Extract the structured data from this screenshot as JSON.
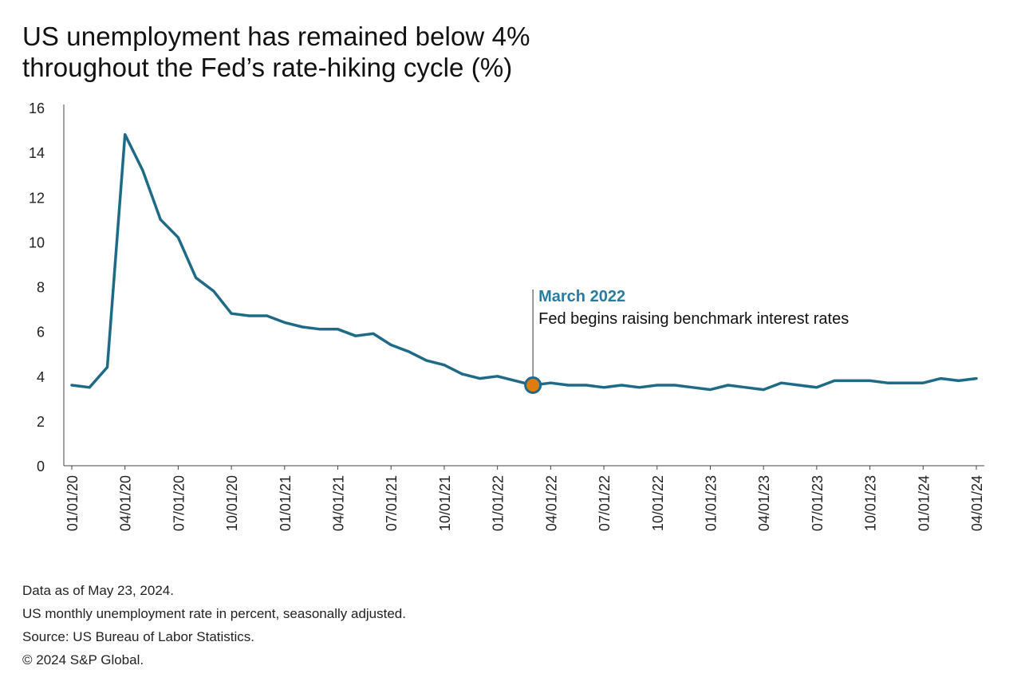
{
  "title_lines": [
    "US unemployment has remained below 4%",
    "throughout the Fed’s rate-hiking cycle (%)"
  ],
  "footer": {
    "line1": "Data as of May 23, 2024.",
    "line2": "US monthly unemployment rate in percent, seasonally adjusted.",
    "line3": "Source: US Bureau of Labor Statistics.",
    "line4": "© 2024 S&P Global."
  },
  "annotation": {
    "title": "March 2022",
    "text": "Fed begins raising benchmark interest rates"
  },
  "colors": {
    "line": "#1f6b87",
    "marker_fill": "#e07b10",
    "annotation_title": "#2a7c9e",
    "axis": "#444444"
  },
  "chart_data": {
    "type": "line",
    "title": "US unemployment has remained below 4% throughout the Fed’s rate-hiking cycle (%)",
    "xlabel": "",
    "ylabel": "",
    "ylim": [
      0,
      16
    ],
    "yticks": [
      0,
      2,
      4,
      6,
      8,
      10,
      12,
      14,
      16
    ],
    "xtick_labels": [
      "01/01/20",
      "04/01/20",
      "07/01/20",
      "10/01/20",
      "01/01/21",
      "04/01/21",
      "07/01/21",
      "10/01/21",
      "01/01/22",
      "04/01/22",
      "07/01/22",
      "10/01/22",
      "01/01/23",
      "04/01/23",
      "07/01/23",
      "10/01/23",
      "01/01/24",
      "04/01/24"
    ],
    "grid": false,
    "legend": "none",
    "highlight": {
      "x": "03/01/22",
      "y": 3.6
    },
    "series": [
      {
        "x": [
          "01/01/20",
          "02/01/20",
          "03/01/20",
          "04/01/20",
          "05/01/20",
          "06/01/20",
          "07/01/20",
          "08/01/20",
          "09/01/20",
          "10/01/20",
          "11/01/20",
          "12/01/20",
          "01/01/21",
          "02/01/21",
          "03/01/21",
          "04/01/21",
          "05/01/21",
          "06/01/21",
          "07/01/21",
          "08/01/21",
          "09/01/21",
          "10/01/21",
          "11/01/21",
          "12/01/21",
          "01/01/22",
          "02/01/22",
          "03/01/22",
          "04/01/22",
          "05/01/22",
          "06/01/22",
          "07/01/22",
          "08/01/22",
          "09/01/22",
          "10/01/22",
          "11/01/22",
          "12/01/22",
          "01/01/23",
          "02/01/23",
          "03/01/23",
          "04/01/23",
          "05/01/23",
          "06/01/23",
          "07/01/23",
          "08/01/23",
          "09/01/23",
          "10/01/23",
          "11/01/23",
          "12/01/23",
          "01/01/24",
          "02/01/24",
          "03/01/24",
          "04/01/24"
        ],
        "values": [
          3.6,
          3.5,
          4.4,
          14.8,
          13.2,
          11.0,
          10.2,
          8.4,
          7.8,
          6.8,
          6.7,
          6.7,
          6.4,
          6.2,
          6.1,
          6.1,
          5.8,
          5.9,
          5.4,
          5.1,
          4.7,
          4.5,
          4.1,
          3.9,
          4.0,
          3.8,
          3.6,
          3.7,
          3.6,
          3.6,
          3.5,
          3.6,
          3.5,
          3.6,
          3.6,
          3.5,
          3.4,
          3.6,
          3.5,
          3.4,
          3.7,
          3.6,
          3.5,
          3.8,
          3.8,
          3.8,
          3.7,
          3.7,
          3.7,
          3.9,
          3.8,
          3.9
        ]
      }
    ]
  }
}
